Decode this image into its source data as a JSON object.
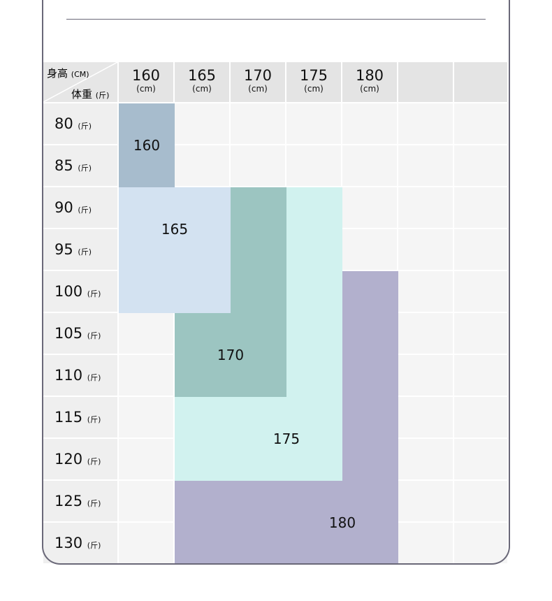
{
  "header": {
    "height_label": "身高",
    "height_unit": "(CM)",
    "weight_label": "体重",
    "weight_unit": "(斤)"
  },
  "columns": [
    {
      "value": "160",
      "unit": "(cm)"
    },
    {
      "value": "165",
      "unit": "(cm)"
    },
    {
      "value": "170",
      "unit": "(cm)"
    },
    {
      "value": "175",
      "unit": "(cm)"
    },
    {
      "value": "180",
      "unit": "(cm)"
    },
    {
      "value": "",
      "unit": ""
    },
    {
      "value": "",
      "unit": ""
    }
  ],
  "rows": [
    {
      "value": "80",
      "unit": "(斤)"
    },
    {
      "value": "85",
      "unit": "(斤)"
    },
    {
      "value": "90",
      "unit": "(斤)"
    },
    {
      "value": "95",
      "unit": "(斤)"
    },
    {
      "value": "100",
      "unit": "(斤)"
    },
    {
      "value": "105",
      "unit": "(斤)"
    },
    {
      "value": "110",
      "unit": "(斤)"
    },
    {
      "value": "115",
      "unit": "(斤)"
    },
    {
      "value": "120",
      "unit": "(斤)"
    },
    {
      "value": "125",
      "unit": "(斤)"
    },
    {
      "value": "130",
      "unit": "(斤)"
    }
  ],
  "sizes": [
    {
      "label": "160",
      "color": "#a7bccd"
    },
    {
      "label": "165",
      "color": "#d3e2f1"
    },
    {
      "label": "170",
      "color": "#9cc5c1"
    },
    {
      "label": "175",
      "color": "#d1f2ef"
    },
    {
      "label": "180",
      "color": "#b2b0cd"
    }
  ]
}
